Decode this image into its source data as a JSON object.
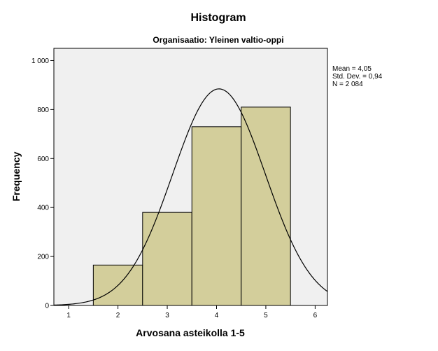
{
  "chart_data": {
    "type": "bar",
    "title": "Histogram",
    "subtitle": "Organisaatio: Yleinen valtio-oppi",
    "xlabel": "Arvosana asteikolla 1-5",
    "ylabel": "Frequency",
    "xlim": [
      0.7,
      6.25
    ],
    "ylim": [
      0,
      1050
    ],
    "x_ticks": [
      1,
      2,
      3,
      4,
      5,
      6
    ],
    "x_tick_labels": [
      "1",
      "2",
      "3",
      "4",
      "5",
      "6"
    ],
    "y_ticks": [
      0,
      200,
      400,
      600,
      800,
      1000
    ],
    "y_tick_labels": [
      "0",
      "200",
      "400",
      "600",
      "800",
      "1 000"
    ],
    "bins": [
      {
        "left": 1.5,
        "right": 2.5,
        "value": 165
      },
      {
        "left": 2.5,
        "right": 3.5,
        "value": 380
      },
      {
        "left": 3.5,
        "right": 4.5,
        "value": 730
      },
      {
        "left": 4.5,
        "right": 5.5,
        "value": 810
      }
    ],
    "normal_curve": {
      "mean": 4.05,
      "std": 0.94,
      "n": 2084
    },
    "stats": [
      "Mean = 4,05",
      "Std. Dev. = 0,94",
      "N = 2 084"
    ],
    "grid": false,
    "legend": "none",
    "colors": {
      "plot_background": "#f0f0f0",
      "bar_fill": "#d3ce9b",
      "bar_stroke": "#000000",
      "curve": "#000000"
    }
  }
}
